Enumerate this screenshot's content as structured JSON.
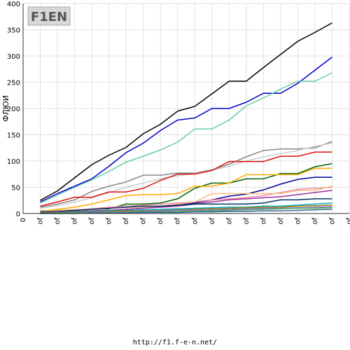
{
  "footer": {
    "url": "http://f1.f-e-n.net/"
  },
  "logo": {
    "text": "F1EN"
  },
  "chart_data": {
    "type": "line",
    "title": "",
    "ylabel": "ФЛЮИ",
    "xlabel": "",
    "ylim": [
      0,
      400
    ],
    "yticks": [
      0,
      50,
      100,
      150,
      200,
      250,
      300,
      350,
      400
    ],
    "x_tick_labels": [
      "0",
      "of",
      "of",
      "of",
      "of",
      "of",
      "of",
      "of",
      "of",
      "of",
      "of",
      "of",
      "of",
      "of",
      "of",
      "of",
      "of",
      "of",
      "of",
      "of"
    ],
    "grid": true,
    "legend": "none",
    "series": [
      {
        "color": "#000000",
        "values": [
          25,
          43,
          68,
          93,
          111,
          126,
          152,
          170,
          195,
          204,
          228,
          252,
          252,
          278,
          303,
          328,
          345,
          363
        ]
      },
      {
        "color": "#0000cc",
        "values": [
          22,
          38,
          52,
          66,
          90,
          116,
          134,
          158,
          178,
          182,
          200,
          200,
          212,
          229,
          229,
          248,
          273,
          298
        ]
      },
      {
        "color": "#66ccaa",
        "values": [
          20,
          35,
          50,
          64,
          80,
          98,
          109,
          121,
          136,
          161,
          161,
          178,
          205,
          220,
          237,
          252,
          252,
          268
        ]
      },
      {
        "color": "#888888",
        "values": [
          12,
          18,
          26,
          42,
          52,
          60,
          73,
          73,
          77,
          77,
          83,
          94,
          108,
          120,
          123,
          123,
          125,
          137
        ]
      },
      {
        "color": "#cccccc",
        "values": [
          10,
          15,
          22,
          30,
          40,
          50,
          58,
          66,
          72,
          76,
          82,
          90,
          100,
          108,
          114,
          120,
          128,
          134
        ]
      },
      {
        "color": "#dd1111",
        "values": [
          14,
          22,
          31,
          31,
          41,
          41,
          48,
          63,
          75,
          75,
          82,
          99,
          99,
          99,
          109,
          109,
          117,
          117
        ]
      },
      {
        "color": "#006600",
        "values": [
          5,
          6,
          7,
          8,
          9,
          18,
          18,
          20,
          28,
          48,
          58,
          58,
          66,
          66,
          76,
          76,
          89,
          95
        ]
      },
      {
        "color": "#ffaa00",
        "values": [
          4,
          8,
          12,
          18,
          26,
          34,
          36,
          36,
          38,
          52,
          52,
          58,
          74,
          74,
          74,
          74,
          86,
          86
        ]
      },
      {
        "color": "#000099",
        "values": [
          2,
          3,
          4,
          5,
          6,
          8,
          10,
          13,
          16,
          20,
          26,
          33,
          37,
          45,
          56,
          65,
          69,
          69
        ]
      },
      {
        "color": "#ee88aa",
        "values": [
          3,
          5,
          7,
          9,
          12,
          14,
          16,
          18,
          20,
          22,
          26,
          28,
          30,
          34,
          40,
          46,
          48,
          50
        ]
      },
      {
        "color": "#ffbb77",
        "values": [
          4,
          6,
          7,
          8,
          10,
          12,
          12,
          14,
          18,
          22,
          38,
          38,
          38,
          38,
          38,
          44,
          44,
          52
        ]
      },
      {
        "color": "#993399",
        "values": [
          2,
          3,
          4,
          5,
          6,
          8,
          10,
          12,
          14,
          18,
          22,
          26,
          28,
          30,
          32,
          36,
          40,
          44
        ]
      },
      {
        "color": "#003366",
        "values": [
          3,
          4,
          6,
          8,
          10,
          12,
          14,
          14,
          16,
          18,
          18,
          18,
          18,
          20,
          26,
          26,
          28,
          28
        ]
      },
      {
        "color": "#00aacc",
        "values": [
          1,
          2,
          3,
          4,
          5,
          6,
          7,
          8,
          9,
          10,
          11,
          12,
          12,
          14,
          14,
          16,
          18,
          20
        ]
      },
      {
        "color": "#aa7700",
        "values": [
          1,
          2,
          2,
          3,
          4,
          5,
          5,
          6,
          7,
          8,
          9,
          10,
          11,
          12,
          12,
          14,
          15,
          16
        ]
      },
      {
        "color": "#7777cc",
        "values": [
          0,
          1,
          1,
          2,
          3,
          3,
          4,
          5,
          6,
          6,
          7,
          8,
          9,
          10,
          10,
          11,
          12,
          13
        ]
      },
      {
        "color": "#55aa55",
        "values": [
          0,
          0,
          1,
          1,
          2,
          2,
          3,
          3,
          4,
          4,
          5,
          6,
          7,
          8,
          9,
          10,
          10,
          11
        ]
      },
      {
        "color": "#336699",
        "values": [
          0,
          0,
          0,
          1,
          1,
          1,
          2,
          2,
          2,
          3,
          3,
          4,
          4,
          5,
          5,
          6,
          7,
          8
        ]
      }
    ]
  }
}
